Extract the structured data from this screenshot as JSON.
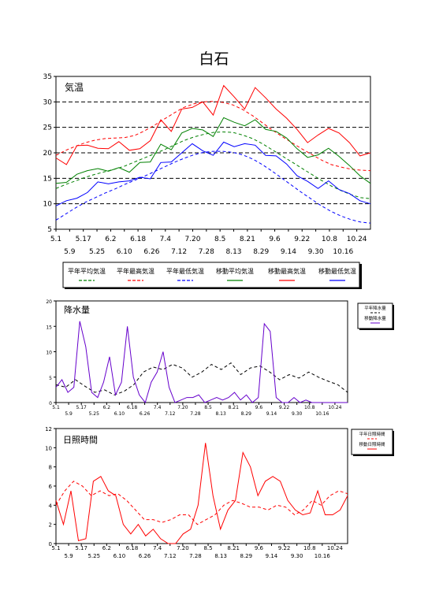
{
  "page_title": "白石",
  "chart_data": [
    {
      "type": "line",
      "panel_label": "気温",
      "ylim": [
        5,
        35
      ],
      "yticks": [
        5,
        10,
        15,
        20,
        25,
        30,
        35
      ],
      "grid": "horizontal dashed",
      "x_start": "5.1",
      "x_end": "10.31",
      "xticks_row1": [
        "5.1",
        "5.17",
        "6.2",
        "6.18",
        "7.4",
        "7.20",
        "8.5",
        "8.21",
        "9.6",
        "9.22",
        "10.8",
        "10.24"
      ],
      "xticks_row2": [
        "5.9",
        "5.25",
        "6.10",
        "6.26",
        "7.12",
        "7.28",
        "8.13",
        "8.29",
        "9.14",
        "9.30",
        "10.16"
      ],
      "legend_placement": "below",
      "legend": [
        "平年平均気温",
        "平年最高気温",
        "平年最低気温",
        "移動平均気温",
        "移動最高気温",
        "移動最低気温"
      ],
      "colors": {
        "avg": "#008000",
        "max": "#ff0000",
        "min": "#0000ff"
      },
      "series": [
        {
          "name": "平年平均気温",
          "style": "dashed",
          "color": "#008000",
          "day_step": 5,
          "values": [
            13.0,
            13.8,
            14.5,
            15.2,
            15.8,
            16.3,
            16.8,
            17.4,
            18.2,
            19.0,
            19.8,
            20.6,
            21.5,
            22.4,
            23.1,
            23.6,
            24.0,
            24.1,
            24.0,
            23.5,
            22.8,
            21.8,
            20.6,
            19.4,
            18.2,
            17.0,
            15.8,
            14.6,
            13.5,
            12.6,
            11.8,
            11.2,
            11.0
          ]
        },
        {
          "name": "平年最高気温",
          "style": "dashed",
          "color": "#ff0000",
          "day_step": 5,
          "values": [
            19.5,
            20.5,
            21.3,
            22.0,
            22.5,
            22.8,
            22.9,
            23.0,
            23.4,
            24.3,
            25.4,
            26.6,
            27.8,
            28.9,
            29.6,
            30.0,
            30.1,
            29.9,
            29.4,
            28.5,
            27.3,
            25.9,
            24.5,
            23.2,
            22.0,
            20.8,
            19.7,
            18.6,
            17.7,
            17.2,
            16.8,
            16.6,
            16.5
          ]
        },
        {
          "name": "平年最低気温",
          "style": "dashed",
          "color": "#0000ff",
          "day_step": 5,
          "values": [
            6.8,
            8.0,
            9.2,
            10.3,
            11.2,
            12.1,
            12.9,
            13.8,
            14.6,
            15.4,
            16.3,
            17.2,
            18.1,
            18.9,
            19.6,
            20.1,
            20.3,
            20.3,
            20.1,
            19.6,
            18.8,
            17.7,
            16.4,
            15.0,
            13.6,
            12.2,
            10.9,
            9.6,
            8.5,
            7.6,
            6.9,
            6.4,
            6.2
          ]
        },
        {
          "name": "移動平均気温",
          "style": "solid",
          "color": "#008000",
          "day_step": 5,
          "values": [
            14.0,
            14.2,
            15.8,
            16.5,
            16.9,
            16.4,
            17.1,
            16.2,
            18.1,
            18.2,
            21.7,
            20.6,
            23.9,
            24.8,
            24.5,
            23.2,
            26.9,
            26.0,
            25.3,
            26.5,
            24.6,
            24.2,
            22.9,
            20.8,
            19.1,
            19.6,
            20.9,
            19.3,
            17.5,
            15.5,
            14.0
          ]
        },
        {
          "name": "移動最高気温",
          "style": "solid",
          "color": "#ff0000",
          "day_step": 5,
          "values": [
            19.0,
            17.7,
            21.4,
            21.5,
            20.9,
            20.8,
            22.2,
            20.5,
            20.8,
            22.4,
            26.5,
            24.2,
            28.6,
            28.9,
            30.0,
            27.4,
            33.2,
            31.0,
            28.6,
            32.8,
            30.8,
            28.6,
            26.8,
            24.6,
            22.0,
            23.5,
            24.8,
            23.9,
            22.0,
            19.4,
            20.0
          ]
        },
        {
          "name": "移動最低気温",
          "style": "solid",
          "color": "#0000ff",
          "day_step": 5,
          "values": [
            9.6,
            10.6,
            11.1,
            12.2,
            14.3,
            13.9,
            14.3,
            14.5,
            15.2,
            14.9,
            18.1,
            18.2,
            20.0,
            21.8,
            20.4,
            19.5,
            22.1,
            21.2,
            21.8,
            21.5,
            19.5,
            19.4,
            17.8,
            15.5,
            14.4,
            13.0,
            14.5,
            12.8,
            12.0,
            10.6,
            10.0
          ]
        }
      ]
    },
    {
      "type": "line",
      "panel_label": "降水量",
      "ylim": [
        0,
        20
      ],
      "yticks": [
        0,
        5,
        10,
        15,
        20
      ],
      "grid": "none",
      "legend_placement": "right",
      "legend": [
        "平年降水量",
        "移動降水量"
      ],
      "colors": {
        "normal": "#000000",
        "moving": "#0000cc"
      },
      "series": [
        {
          "name": "平年降水量",
          "style": "dashed",
          "color": "#000000",
          "day_step": 5,
          "values": [
            3.5,
            3.0,
            4.5,
            3.2,
            2.0,
            2.5,
            1.5,
            2.2,
            3.5,
            6.0,
            7.0,
            6.5,
            7.5,
            6.8,
            5.0,
            6.0,
            7.5,
            6.5,
            7.8,
            5.5,
            6.8,
            7.2,
            6.0,
            4.5,
            5.5,
            4.8,
            6.0,
            5.0,
            4.2,
            3.5,
            2.0
          ]
        },
        {
          "name": "移動降水量",
          "style": "solid",
          "color": "#6600cc",
          "day_step": 5,
          "values": [
            3.0,
            4.5,
            2.0,
            3.0,
            16.0,
            11.0,
            2.0,
            1.0,
            4.0,
            9.0,
            1.5,
            4.0,
            15.0,
            5.0,
            1.5,
            0.0,
            4.0,
            6.0,
            10.0,
            3.0,
            0.0,
            0.5,
            1.0,
            1.0,
            1.5,
            0.0,
            0.5,
            1.0,
            0.5,
            1.0,
            2.0,
            0.5,
            1.5,
            0.0,
            1.0,
            15.5,
            14.0,
            1.0,
            0.0,
            0.0,
            1.0,
            0.0,
            0.5,
            0.0,
            0.0,
            0.0,
            0.0,
            0.0,
            0.0,
            0.0
          ]
        }
      ]
    },
    {
      "type": "line",
      "panel_label": "日照時間",
      "ylim": [
        0,
        12
      ],
      "yticks": [
        0,
        2,
        4,
        6,
        8,
        10,
        12
      ],
      "grid": "none",
      "legend_placement": "right",
      "legend": [
        "平年日照時間",
        "移動日照時間"
      ],
      "colors": {
        "normal": "#ff0000",
        "moving": "#ff0000"
      },
      "series": [
        {
          "name": "平年日照時間",
          "style": "dashed",
          "color": "#ff0000",
          "day_step": 5,
          "values": [
            4.0,
            5.5,
            6.5,
            6.0,
            5.0,
            5.5,
            5.0,
            5.2,
            4.5,
            3.5,
            2.5,
            2.5,
            2.2,
            2.5,
            3.0,
            3.0,
            2.0,
            2.5,
            3.0,
            4.0,
            4.5,
            4.2,
            3.8,
            3.8,
            3.5,
            4.0,
            3.8,
            3.0,
            3.5,
            4.5,
            4.0,
            5.0,
            5.5,
            5.2
          ]
        },
        {
          "name": "移動日照時間",
          "style": "solid",
          "color": "#ff0000",
          "day_step": 5,
          "values": [
            4.5,
            2.0,
            5.5,
            0.3,
            0.5,
            6.5,
            7.0,
            5.5,
            5.0,
            2.0,
            1.0,
            2.0,
            0.8,
            1.5,
            0.5,
            0.0,
            0.0,
            1.0,
            1.5,
            4.0,
            10.5,
            5.0,
            1.5,
            3.5,
            4.5,
            9.5,
            8.0,
            5.0,
            6.5,
            7.0,
            6.5,
            4.5,
            3.5,
            3.0,
            3.2,
            5.5,
            3.0,
            3.0,
            3.5,
            5.0
          ]
        }
      ]
    }
  ]
}
